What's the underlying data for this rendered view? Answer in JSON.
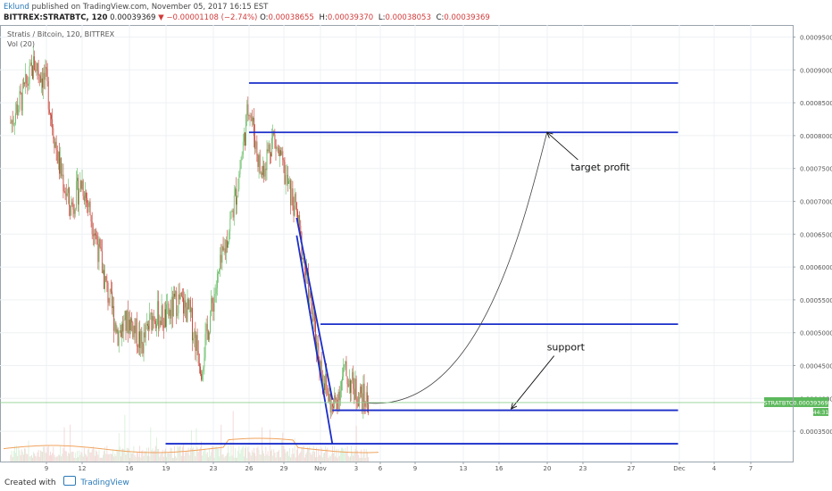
{
  "header": {
    "user": "Eklund",
    "published": "published on TradingView.com, November 05, 2017 16:15 EST",
    "symbol": "BITTREX:STRATBTC, 120",
    "last": "0.00039369",
    "change": "▼ −0.00001108 (−2.74%)",
    "ohlc": [
      {
        "label": "O:",
        "value": "0.00038655"
      },
      {
        "label": "H:",
        "value": "0.00039370"
      },
      {
        "label": "L:",
        "value": "0.00038053"
      },
      {
        "label": "C:",
        "value": "0.00039369"
      }
    ]
  },
  "legend": {
    "title": "Stratis / Bitcoin, 120, BITTREX",
    "volume": "Vol (20)"
  },
  "footer": {
    "created_with": "Created with",
    "brand": "TradingView"
  },
  "colors": {
    "up": "#5cb85c",
    "down": "#c0392b",
    "drawing": "#1a2ec9",
    "price_tag": "#5cb85c",
    "grid": "#eef1f4"
  },
  "chart_data": {
    "type": "candlestick",
    "title": "Stratis / Bitcoin, 120, BITTREX",
    "y_ticks": [
      "0.00095000",
      "0.00090000",
      "0.00085000",
      "0.00080000",
      "0.00075000",
      "0.00070000",
      "0.00065000",
      "0.00060000",
      "0.00055000",
      "0.00050000",
      "0.00045000",
      "0.00040000",
      "0.00035000"
    ],
    "x_ticks": [
      "9",
      "12",
      "16",
      "19",
      "23",
      "26",
      "29",
      "Nov",
      "3",
      "6",
      "9",
      "13",
      "16",
      "20",
      "23",
      "27",
      "Dec",
      "4",
      "7"
    ],
    "ylim": [
      0.0003,
      0.00097
    ],
    "price_path": [
      [
        "2017-10-06",
        0.00082
      ],
      [
        "2017-10-07",
        0.00086
      ],
      [
        "2017-10-08",
        0.00091
      ],
      [
        "2017-10-09",
        0.00088
      ],
      [
        "2017-10-10",
        0.00076
      ],
      [
        "2017-10-11",
        0.00069
      ],
      [
        "2017-10-12",
        0.00073
      ],
      [
        "2017-10-13",
        0.00066
      ],
      [
        "2017-10-14",
        0.00057
      ],
      [
        "2017-10-15",
        0.0005
      ],
      [
        "2017-10-16",
        0.00052
      ],
      [
        "2017-10-17",
        0.00048
      ],
      [
        "2017-10-18",
        0.00053
      ],
      [
        "2017-10-19",
        0.00052
      ],
      [
        "2017-10-20",
        0.00055
      ],
      [
        "2017-10-21",
        0.00053
      ],
      [
        "2017-10-22",
        0.00045
      ],
      [
        "2017-10-23",
        0.00055
      ],
      [
        "2017-10-24",
        0.00063
      ],
      [
        "2017-10-25",
        0.00072
      ],
      [
        "2017-10-26",
        0.00085
      ],
      [
        "2017-10-27",
        0.00074
      ],
      [
        "2017-10-28",
        0.0008
      ],
      [
        "2017-10-29",
        0.00074
      ],
      [
        "2017-10-30",
        0.00068
      ],
      [
        "2017-10-31",
        0.00056
      ],
      [
        "2017-11-01",
        0.00045
      ],
      [
        "2017-11-02",
        0.00038
      ],
      [
        "2017-11-03",
        0.00044
      ],
      [
        "2017-11-04",
        0.00041
      ],
      [
        "2017-11-05",
        0.00039369
      ]
    ],
    "current_price": {
      "label": "STRATBTC",
      "value": "0.00039369",
      "sub": "44:31"
    },
    "drawings": {
      "horizontal_lines": [
        {
          "price": 0.00088,
          "from": "2017-10-26",
          "to": "2017-12-01"
        },
        {
          "price": 0.000805,
          "from": "2017-10-26",
          "to": "2017-12-01"
        },
        {
          "price": 0.000513,
          "from": "2017-11-01",
          "to": "2017-12-01"
        },
        {
          "price": 0.000382,
          "from": "2017-11-02",
          "to": "2017-12-01"
        },
        {
          "price": 0.000331,
          "from": "2017-10-19",
          "to": "2017-12-01"
        }
      ],
      "channel": [
        {
          "from": [
            "2017-10-30",
            0.000648
          ],
          "to": [
            "2017-11-02",
            0.00033
          ]
        },
        {
          "from": [
            "2017-10-30",
            0.000675
          ],
          "to": [
            "2017-11-02",
            0.000398
          ]
        }
      ],
      "curve": {
        "from": [
          "2017-11-05",
          0.000393
        ],
        "to": [
          "2017-11-20",
          0.000805
        ]
      },
      "annotations": [
        {
          "text": "target profit",
          "at": [
            "2017-11-22",
            0.000747
          ],
          "arrow_to": [
            "2017-11-20",
            0.000805
          ]
        },
        {
          "text": "support",
          "at": [
            "2017-11-20",
            0.000473
          ],
          "arrow_to": [
            "2017-11-17",
            0.000384
          ]
        }
      ]
    }
  }
}
